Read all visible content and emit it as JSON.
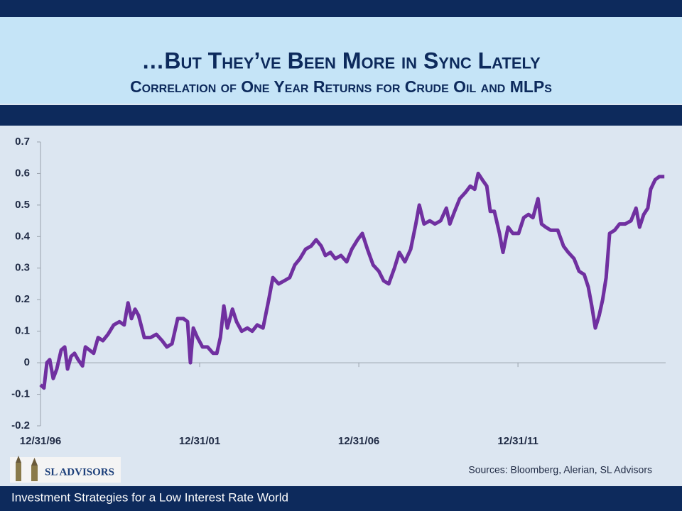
{
  "header": {
    "title": "…But They’ve Been More in Sync Lately",
    "subtitle": "Correlation of One Year Returns for Crude Oil and MLPs"
  },
  "chart_data": {
    "type": "line",
    "x": [
      1997.0,
      1997.11,
      1997.2,
      1997.29,
      1997.4,
      1997.51,
      1997.65,
      1997.76,
      1997.85,
      1997.96,
      1998.07,
      1998.18,
      1998.32,
      1998.41,
      1998.54,
      1998.67,
      1998.81,
      1998.96,
      1999.12,
      1999.3,
      1999.48,
      1999.63,
      1999.75,
      1999.86,
      1999.97,
      2000.08,
      2000.26,
      2000.46,
      2000.64,
      2000.82,
      2000.97,
      2001.13,
      2001.31,
      2001.49,
      2001.62,
      2001.71,
      2001.8,
      2001.93,
      2002.09,
      2002.25,
      2002.42,
      2002.54,
      2002.65,
      2002.76,
      2002.87,
      2003.03,
      2003.16,
      2003.32,
      2003.5,
      2003.65,
      2003.81,
      2003.99,
      2004.17,
      2004.3,
      2004.48,
      2004.66,
      2004.83,
      2004.99,
      2005.15,
      2005.33,
      2005.5,
      2005.66,
      2005.82,
      2005.95,
      2006.11,
      2006.26,
      2006.44,
      2006.62,
      2006.78,
      2006.96,
      2007.11,
      2007.27,
      2007.45,
      2007.63,
      2007.78,
      2007.94,
      2008.12,
      2008.27,
      2008.45,
      2008.63,
      2008.79,
      2008.9,
      2009.05,
      2009.23,
      2009.39,
      2009.57,
      2009.75,
      2009.86,
      2010.01,
      2010.17,
      2010.35,
      2010.5,
      2010.64,
      2010.75,
      2010.88,
      2011.02,
      2011.13,
      2011.26,
      2011.42,
      2011.53,
      2011.69,
      2011.84,
      2012.02,
      2012.18,
      2012.33,
      2012.47,
      2012.63,
      2012.74,
      2012.87,
      2013.03,
      2013.25,
      2013.43,
      2013.58,
      2013.76,
      2013.92,
      2014.08,
      2014.21,
      2014.32,
      2014.43,
      2014.55,
      2014.66,
      2014.77,
      2014.88,
      2015.04,
      2015.19,
      2015.37,
      2015.55,
      2015.71,
      2015.82,
      2015.95,
      2016.08,
      2016.17,
      2016.31,
      2016.44,
      2016.6
    ],
    "series": [
      {
        "color": "#7030a0",
        "values": [
          -0.07,
          -0.08,
          0.0,
          0.01,
          -0.05,
          -0.02,
          0.04,
          0.05,
          -0.02,
          0.02,
          0.03,
          0.01,
          -0.01,
          0.05,
          0.04,
          0.03,
          0.08,
          0.07,
          0.09,
          0.12,
          0.13,
          0.12,
          0.19,
          0.14,
          0.17,
          0.15,
          0.08,
          0.08,
          0.09,
          0.07,
          0.05,
          0.06,
          0.14,
          0.14,
          0.13,
          0.0,
          0.11,
          0.08,
          0.05,
          0.05,
          0.03,
          0.03,
          0.08,
          0.18,
          0.11,
          0.17,
          0.13,
          0.1,
          0.11,
          0.1,
          0.12,
          0.11,
          0.2,
          0.27,
          0.25,
          0.26,
          0.27,
          0.31,
          0.33,
          0.36,
          0.37,
          0.39,
          0.37,
          0.34,
          0.35,
          0.33,
          0.34,
          0.32,
          0.36,
          0.39,
          0.41,
          0.36,
          0.31,
          0.29,
          0.26,
          0.25,
          0.3,
          0.35,
          0.32,
          0.36,
          0.44,
          0.5,
          0.44,
          0.45,
          0.44,
          0.45,
          0.49,
          0.44,
          0.48,
          0.52,
          0.54,
          0.56,
          0.55,
          0.6,
          0.58,
          0.56,
          0.48,
          0.48,
          0.41,
          0.35,
          0.43,
          0.41,
          0.41,
          0.46,
          0.47,
          0.46,
          0.52,
          0.44,
          0.43,
          0.42,
          0.42,
          0.37,
          0.35,
          0.33,
          0.29,
          0.28,
          0.24,
          0.18,
          0.11,
          0.15,
          0.2,
          0.27,
          0.41,
          0.42,
          0.44,
          0.44,
          0.45,
          0.49,
          0.43,
          0.47,
          0.49,
          0.55,
          0.58,
          0.59,
          0.59
        ]
      }
    ],
    "xlim": [
      1997,
      2016.64
    ],
    "xticks": [
      {
        "value": 1997,
        "label": "12/31/96"
      },
      {
        "value": 2002,
        "label": "12/31/01"
      },
      {
        "value": 2007,
        "label": "12/31/06"
      },
      {
        "value": 2012,
        "label": "12/31/11"
      }
    ],
    "ylim": [
      -0.2,
      0.7
    ],
    "yticks": [
      -0.2,
      -0.1,
      0,
      0.1,
      0.2,
      0.3,
      0.4,
      0.5,
      0.6,
      0.7
    ],
    "grid": false
  },
  "sources": "Sources: Bloomberg, Alerian, SL Advisors",
  "logo": "SL ADVISORS",
  "footer": "Investment Strategies for a Low Interest Rate World"
}
